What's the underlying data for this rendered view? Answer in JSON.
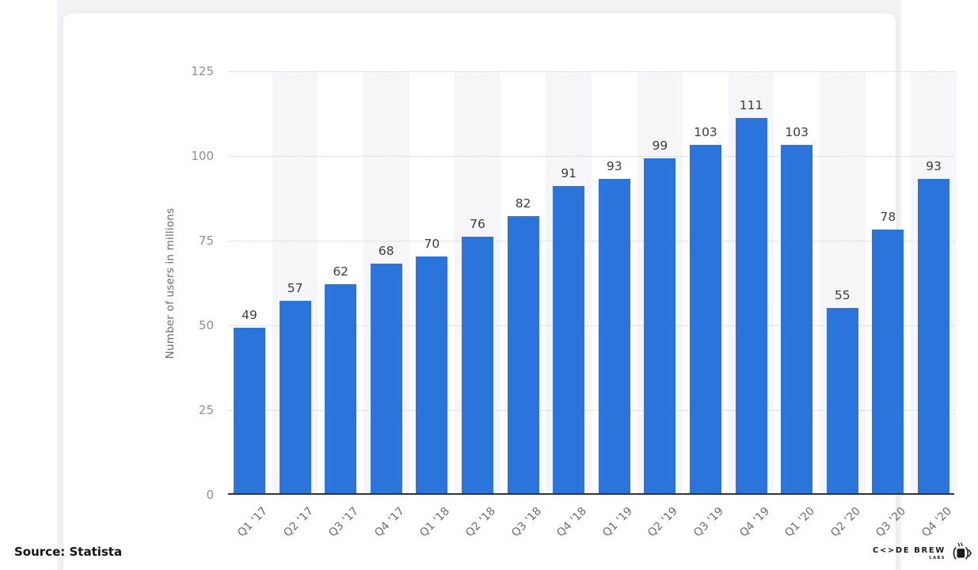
{
  "page": {
    "source_label": "Source: Statista",
    "logo": {
      "brand": "C<>DE BREW",
      "sub": "LABS"
    }
  },
  "chart_data": {
    "type": "bar",
    "categories": [
      "Q1 '17",
      "Q2 '17",
      "Q3 '17",
      "Q4 '17",
      "Q1 '18",
      "Q2 '18",
      "Q3 '18",
      "Q4 '18",
      "Q1 '19",
      "Q2 '19",
      "Q3 '19",
      "Q4 '19",
      "Q1 '20",
      "Q2 '20",
      "Q3 '20",
      "Q4 '20"
    ],
    "values": [
      49,
      57,
      62,
      68,
      70,
      76,
      82,
      91,
      93,
      99,
      103,
      111,
      103,
      55,
      78,
      93
    ],
    "title": "",
    "xlabel": "",
    "ylabel": "Number of users in millions",
    "ylim": [
      0,
      125
    ],
    "yticks": [
      0,
      25,
      50,
      75,
      100,
      125
    ],
    "grid": "horizontal-dotted",
    "value_labels_shown": true,
    "legend": "none",
    "colors": {
      "bar": "#2b74db",
      "column_band": "#f6f6f8",
      "gridline": "#cfcfcf",
      "axis_line": "#333333",
      "value_label_text": "#3c3c3c",
      "tick_text": "#8f8f8f",
      "x_tick_text": "#6d6d6d",
      "card_background": "#ffffff",
      "page_background": "#f2f3f5"
    }
  }
}
